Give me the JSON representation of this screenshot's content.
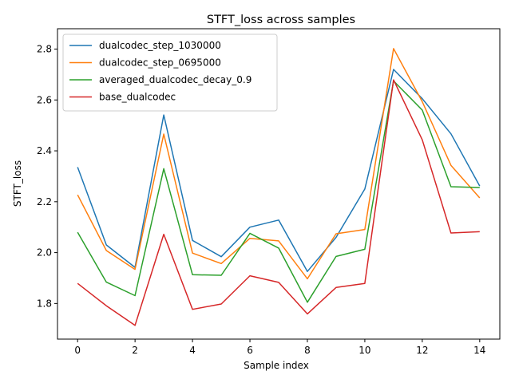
{
  "chart_data": {
    "type": "line",
    "title": "STFT_loss across samples",
    "xlabel": "Sample index",
    "ylabel": "STFT_loss",
    "x": [
      0,
      1,
      2,
      3,
      4,
      5,
      6,
      7,
      8,
      9,
      10,
      11,
      12,
      13,
      14
    ],
    "xlim": [
      -0.7,
      14.7
    ],
    "ylim": [
      1.66,
      2.88
    ],
    "xticks": [
      0,
      2,
      4,
      6,
      8,
      10,
      12,
      14
    ],
    "xtick_labels": [
      "0",
      "2",
      "4",
      "6",
      "8",
      "10",
      "12",
      "14"
    ],
    "yticks": [
      1.8,
      2.0,
      2.2,
      2.4,
      2.6,
      2.8
    ],
    "ytick_labels": [
      "1.8",
      "2.0",
      "2.2",
      "2.4",
      "2.6",
      "2.8"
    ],
    "grid": false,
    "legend_position": "upper-left",
    "series": [
      {
        "name": "dualcodec_step_1030000",
        "color": "#1f77b4",
        "values": [
          2.336,
          2.03,
          1.942,
          2.541,
          2.048,
          1.984,
          2.1,
          2.128,
          1.926,
          2.06,
          2.25,
          2.72,
          2.605,
          2.467,
          2.262
        ]
      },
      {
        "name": "dualcodec_step_0695000",
        "color": "#ff7f0e",
        "values": [
          2.227,
          2.008,
          1.934,
          2.466,
          1.998,
          1.957,
          2.056,
          2.046,
          1.897,
          2.074,
          2.091,
          2.802,
          2.593,
          2.343,
          2.215
        ]
      },
      {
        "name": "averaged_dualcodec_decay_0.9",
        "color": "#2ca02c",
        "values": [
          2.08,
          1.884,
          1.831,
          2.33,
          1.913,
          1.911,
          2.076,
          2.018,
          1.805,
          1.985,
          2.013,
          2.675,
          2.56,
          2.259,
          2.256
        ]
      },
      {
        "name": "base_dualcodec",
        "color": "#d62728",
        "values": [
          1.879,
          1.791,
          1.714,
          2.072,
          1.777,
          1.798,
          1.909,
          1.883,
          1.759,
          1.863,
          1.879,
          2.679,
          2.443,
          2.077,
          2.082
        ]
      }
    ]
  }
}
